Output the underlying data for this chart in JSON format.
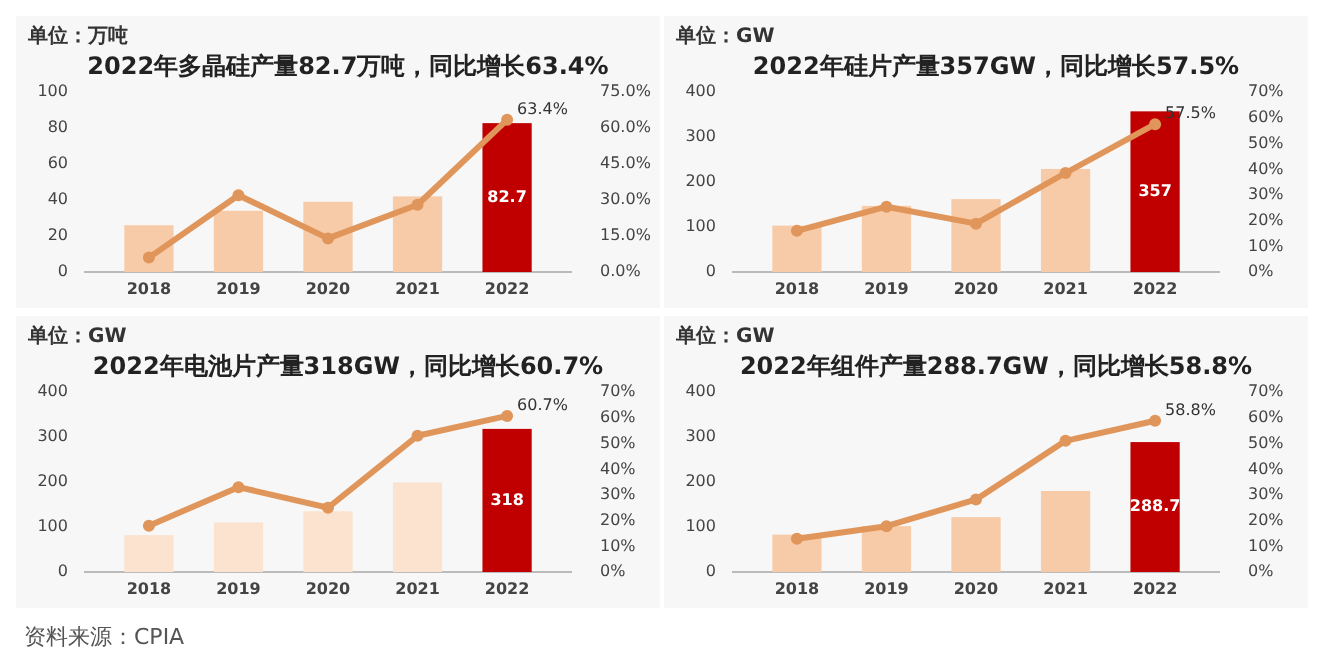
{
  "chart_data": [
    {
      "type": "bar",
      "title": "2022年多晶硅产量82.7万吨，同比增长63.4%",
      "ylabel": "单位：万吨",
      "categories": [
        "2018",
        "2019",
        "2020",
        "2021",
        "2022"
      ],
      "ylim": [
        0,
        100
      ],
      "yticks": [
        0,
        20,
        40,
        60,
        80,
        100
      ],
      "y2lim": [
        0,
        75
      ],
      "y2ticks": [
        {
          "value": 0,
          "label": "0.0%"
        },
        {
          "value": 15,
          "label": "15.0%"
        },
        {
          "value": 30,
          "label": "30.0%"
        },
        {
          "value": 45,
          "label": "45.0%"
        },
        {
          "value": 60,
          "label": "60.0%"
        },
        {
          "value": 75,
          "label": "75.0%"
        }
      ],
      "marker": "circle",
      "grid": false,
      "series": [
        {
          "colors": [
            "#f8cba8",
            "#f8cba8",
            "#f8cba8",
            "#f8cba8",
            "#c00000"
          ],
          "values": [
            26,
            34,
            39,
            42,
            82.7
          ],
          "value_labels": [
            null,
            null,
            null,
            null,
            "82.7"
          ]
        },
        {
          "type": "line",
          "axis": "y2",
          "color": "#e0955a",
          "values": [
            6,
            32,
            14,
            28,
            63.4
          ],
          "value_labels": [
            null,
            null,
            null,
            null,
            "63.4%"
          ]
        }
      ]
    },
    {
      "type": "bar",
      "title": "2022年硅片产量357GW，同比增长57.5%",
      "ylabel": "单位：GW",
      "categories": [
        "2018",
        "2019",
        "2020",
        "2021",
        "2022"
      ],
      "ylim": [
        0,
        400
      ],
      "yticks": [
        0,
        100,
        200,
        300,
        400
      ],
      "y2lim": [
        0,
        70
      ],
      "y2ticks": [
        {
          "value": 0,
          "label": "0%"
        },
        {
          "value": 10,
          "label": "10%"
        },
        {
          "value": 20,
          "label": "20%"
        },
        {
          "value": 30,
          "label": "30%"
        },
        {
          "value": 40,
          "label": "40%"
        },
        {
          "value": 50,
          "label": "50%"
        },
        {
          "value": 60,
          "label": "60%"
        },
        {
          "value": 70,
          "label": "70%"
        }
      ],
      "marker": "circle",
      "grid": false,
      "series": [
        {
          "colors": [
            "#f8cba8",
            "#f8cba8",
            "#f8cba8",
            "#f8cba8",
            "#c00000"
          ],
          "values": [
            103,
            147,
            162,
            229,
            357
          ],
          "value_labels": [
            null,
            null,
            null,
            null,
            "357"
          ]
        },
        {
          "type": "line",
          "axis": "y2",
          "color": "#e0955a",
          "values": [
            16,
            25.4,
            18.8,
            38.5,
            57.5
          ],
          "value_labels": [
            null,
            null,
            null,
            null,
            "57.5%"
          ]
        }
      ]
    },
    {
      "type": "bar",
      "title": "2022年电池片产量318GW，同比增长60.7%",
      "ylabel": "单位：GW",
      "categories": [
        "2018",
        "2019",
        "2020",
        "2021",
        "2022"
      ],
      "ylim": [
        0,
        400
      ],
      "yticks": [
        0,
        100,
        200,
        300,
        400
      ],
      "y2lim": [
        0,
        70
      ],
      "y2ticks": [
        {
          "value": 0,
          "label": "0%"
        },
        {
          "value": 10,
          "label": "10%"
        },
        {
          "value": 20,
          "label": "20%"
        },
        {
          "value": 30,
          "label": "30%"
        },
        {
          "value": 40,
          "label": "40%"
        },
        {
          "value": 50,
          "label": "50%"
        },
        {
          "value": 60,
          "label": "60%"
        },
        {
          "value": 70,
          "label": "70%"
        }
      ],
      "marker": "circle",
      "grid": false,
      "annotations": [
        "资料来源：CPIA"
      ],
      "series": [
        {
          "colors": [
            "#fbe3d0",
            "#fbe3d0",
            "#fbe3d0",
            "#fbe3d0",
            "#c00000"
          ],
          "values": [
            82,
            110,
            135,
            199,
            318
          ],
          "value_labels": [
            null,
            null,
            null,
            null,
            "318"
          ]
        },
        {
          "type": "line",
          "axis": "y2",
          "color": "#e0955a",
          "values": [
            18,
            33,
            25,
            53,
            60.7
          ],
          "value_labels": [
            null,
            null,
            null,
            null,
            "60.7%"
          ]
        }
      ]
    },
    {
      "type": "bar",
      "title": "2022年组件产量288.7GW，同比增长58.8%",
      "ylabel": "单位：GW",
      "categories": [
        "2018",
        "2019",
        "2020",
        "2021",
        "2022"
      ],
      "ylim": [
        0,
        400
      ],
      "yticks": [
        0,
        100,
        200,
        300,
        400
      ],
      "y2lim": [
        0,
        70
      ],
      "y2ticks": [
        {
          "value": 0,
          "label": "0%"
        },
        {
          "value": 10,
          "label": "10%"
        },
        {
          "value": 20,
          "label": "20%"
        },
        {
          "value": 30,
          "label": "30%"
        },
        {
          "value": 40,
          "label": "40%"
        },
        {
          "value": 50,
          "label": "50%"
        },
        {
          "value": 60,
          "label": "60%"
        },
        {
          "value": 70,
          "label": "70%"
        }
      ],
      "marker": "circle",
      "grid": false,
      "series": [
        {
          "colors": [
            "#f8cba8",
            "#f8cba8",
            "#f8cba8",
            "#f8cba8",
            "#c00000"
          ],
          "values": [
            83,
            102,
            122,
            180,
            288.7
          ],
          "value_labels": [
            null,
            null,
            null,
            null,
            "288.7"
          ]
        },
        {
          "type": "line",
          "axis": "y2",
          "color": "#e0955a",
          "values": [
            12.9,
            17.8,
            28.2,
            51,
            58.8
          ],
          "value_labels": [
            null,
            null,
            null,
            null,
            "58.8%"
          ]
        }
      ]
    }
  ]
}
